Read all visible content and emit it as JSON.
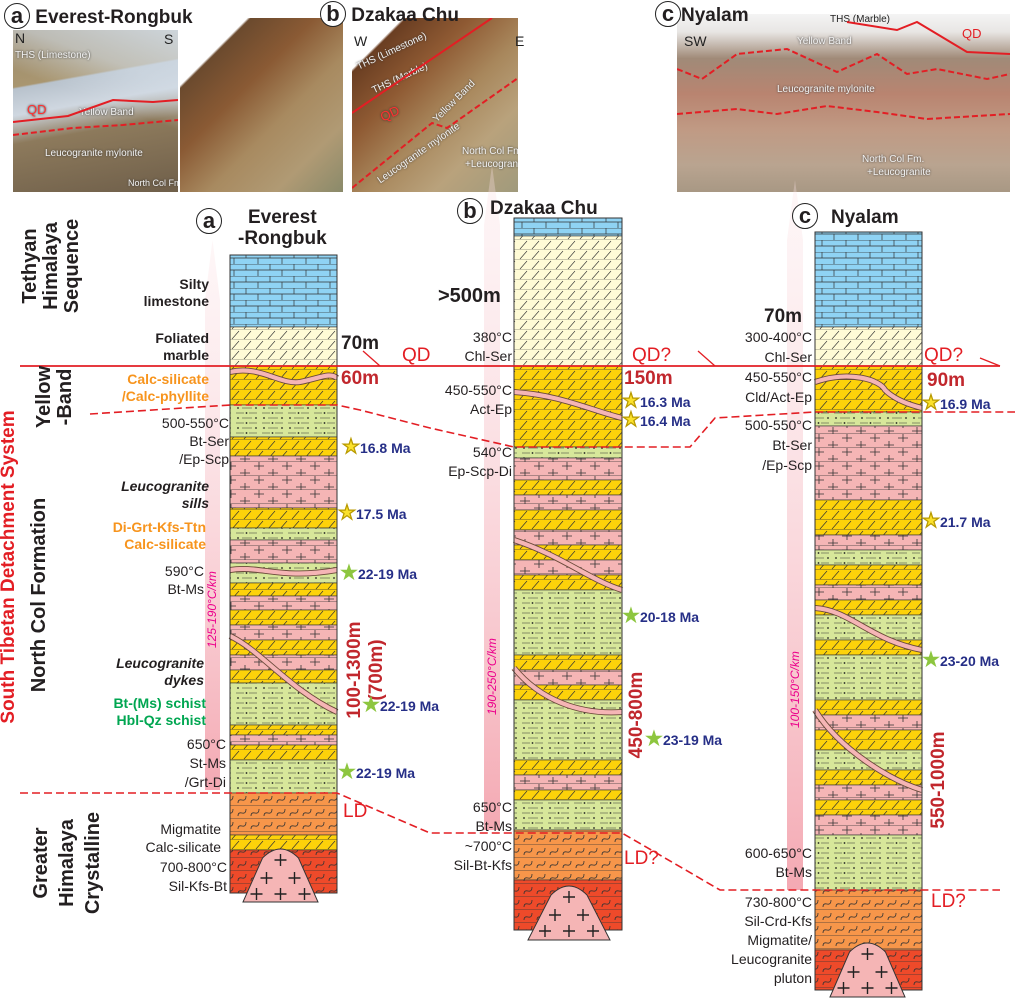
{
  "photos": [
    {
      "letter": "a",
      "title": "Everest-Rongbuk",
      "dir_left": "N",
      "dir_right": "S",
      "labels": [
        "THS (Limestone)",
        "QD",
        "Yellow Band",
        "Leucogranite mylonite",
        "North Col Fm."
      ]
    },
    {
      "letter": "b",
      "title": "Dzakaa Chu",
      "dir_left": "W",
      "dir_right": "E",
      "labels": [
        "THS (Limestone)",
        "THS (Marble)",
        "QD",
        "Yellow Band",
        "Leucogranite mylonite",
        "North Col Fm.",
        "+Leucogranite"
      ]
    },
    {
      "letter": "c",
      "title": "Nyalam",
      "dir_left": "SW",
      "labels": [
        "THS (Marble)",
        "QD",
        "Yellow Band",
        "Leucogranite mylonite",
        "North Col Fm.",
        "+Leucogranite"
      ]
    }
  ],
  "units": {
    "ths": "Tethyan Himalaya Sequence",
    "ths_lines": [
      "Tethyan",
      "Himalaya",
      "Sequence"
    ],
    "yellow_band": [
      "Yellow",
      "-Band"
    ],
    "stds": "South Tibetan Detachment System",
    "north_col": "North Col Formation",
    "ghc": [
      "Greater",
      "Himalaya",
      "Crystalline"
    ]
  },
  "faults": {
    "qd": "QD",
    "qd_q": "QD?",
    "ld": "LD",
    "ld_q": "LD?"
  },
  "columns": {
    "a": {
      "letter": "a",
      "title": [
        "Everest",
        "-Rongbuk"
      ],
      "labels": {
        "silty": [
          "Silty",
          "limestone"
        ],
        "marble": [
          "Foliated",
          "marble"
        ],
        "calc": [
          "Calc-silicate",
          "/Calc-phyllite"
        ],
        "t1": [
          "500-550°C",
          "Bt-Ser",
          "/Ep-Scp"
        ],
        "sills": [
          "Leucogranite",
          "sills"
        ],
        "digrt": [
          "Di-Grt-Kfs-Ttn",
          "Calc-silicate"
        ],
        "t2": [
          "590°C",
          "Bt-Ms"
        ],
        "dykes": [
          "Leucogranite",
          "dykes"
        ],
        "schist": [
          "Bt-(Ms) schist",
          "Hbl-Qz schist"
        ],
        "t3": [
          "650°C",
          "St-Ms",
          "/Grt-Di"
        ],
        "mig": [
          "Migmatite",
          "Calc-silicate"
        ],
        "t4": [
          "700-800°C",
          "Sil-Kfs-Bt"
        ]
      },
      "thick_top": "70m",
      "thick_yb": "60m",
      "thick_nc": [
        "100-1300m",
        "(700m)"
      ],
      "gradient": "125-190°C/km",
      "ages": [
        "16.8 Ma",
        "17.5 Ma",
        "22-19 Ma",
        "22-19 Ma",
        "22-19 Ma"
      ]
    },
    "b": {
      "letter": "b",
      "title": "Dzakaa Chu",
      "labels": {
        "t0": [
          "380°C",
          "Chl-Ser"
        ],
        "t1": [
          "450-550°C",
          "Act-Ep"
        ],
        "t2": [
          "540°C",
          "Ep-Scp-Di"
        ],
        "t3": [
          "650°C",
          "Bt-Ms"
        ],
        "t4": [
          "~700°C",
          "Sil-Bt-Kfs"
        ]
      },
      "thick_top": ">500m",
      "thick_yb": "150m",
      "thick_nc": "450-800m",
      "gradient": "190-250°C/km",
      "ages": [
        "16.3 Ma",
        "16.4 Ma",
        "20-18 Ma",
        "23-19 Ma"
      ]
    },
    "c": {
      "letter": "c",
      "title": "Nyalam",
      "labels": {
        "t0": [
          "300-400°C",
          "Chl-Ser"
        ],
        "t1": [
          "450-550°C",
          "Cld/Act-Ep"
        ],
        "t2": [
          "500-550°C",
          "Bt-Ser",
          "/Ep-Scp"
        ],
        "t3": [
          "600-650°C",
          "Bt-Ms"
        ],
        "t4": [
          "730-800°C",
          "Sil-Crd-Kfs",
          "Migmatite/",
          "Leucogranite",
          "pluton"
        ]
      },
      "thick_top": "70m",
      "thick_yb": "90m",
      "thick_nc": "550-1000m",
      "gradient": "100-150°C/km",
      "ages": [
        "16.9 Ma",
        "21.7 Ma",
        "23-20 Ma"
      ]
    }
  },
  "colors": {
    "limestone": "#8fd3f4",
    "marble": "#fffbd6",
    "yellow": "#fdd20a",
    "schist": "#d7e79a",
    "granite": "#f5b5b5",
    "migmatite": "#f7964a",
    "migmatite_hot": "#ee4a2a",
    "fault": "#e31e24",
    "age_star_yellow": "#fbe12b",
    "age_star_green": "#8dc63f"
  }
}
